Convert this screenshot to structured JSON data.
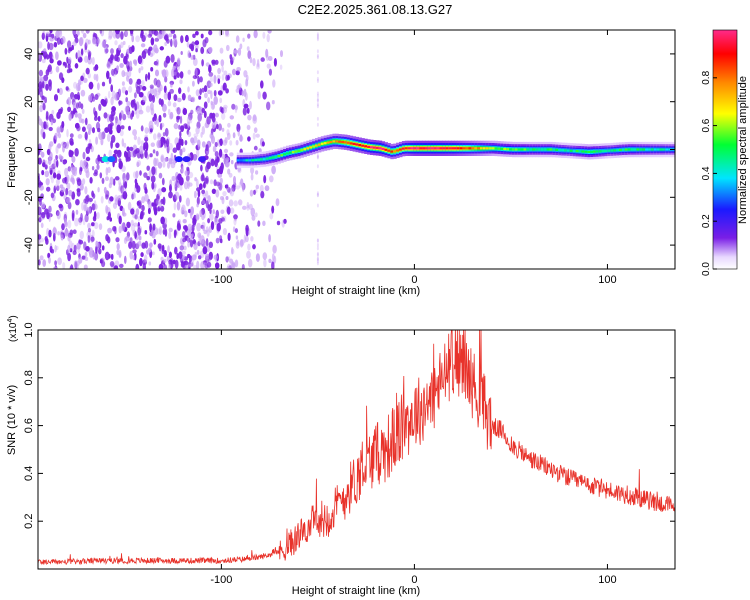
{
  "figure_title": "C2E2.2025.361.08.13.G27",
  "colors": {
    "line": "#e8322a",
    "axis": "#000000",
    "noise": "#7b22e0",
    "noise_light": "#c9a2f5"
  },
  "chart_data": [
    {
      "type": "heatmap",
      "title": "C2E2.2025.361.08.13.G27",
      "xlabel": "Height of straight line (km)",
      "ylabel": "Frequency (Hz)",
      "xlim": [
        -195,
        135
      ],
      "ylim": [
        -50,
        50
      ],
      "xticks": [
        -100,
        0,
        100
      ],
      "xtick_labels": [
        "-100",
        "0",
        "100"
      ],
      "yticks": [
        -40,
        -20,
        0,
        20,
        40
      ],
      "ytick_labels": [
        "-40",
        "-20",
        "0",
        "20",
        "40"
      ],
      "colorbar": {
        "label": "Normalized spectral amplitude",
        "range": [
          0,
          1
        ],
        "ticks": [
          0.0,
          0.2,
          0.4,
          0.6,
          0.8
        ],
        "tick_labels": [
          "0.0",
          "0.2",
          "0.4",
          "0.6",
          "0.8"
        ]
      },
      "ridge": [
        {
          "x": -92,
          "y": -4.5,
          "v": 0.35
        },
        {
          "x": -85,
          "y": -4.5,
          "v": 0.4
        },
        {
          "x": -78,
          "y": -4,
          "v": 0.45
        },
        {
          "x": -72,
          "y": -3,
          "v": 0.5
        },
        {
          "x": -66,
          "y": -1.5,
          "v": 0.55
        },
        {
          "x": -60,
          "y": -0.5,
          "v": 0.6
        },
        {
          "x": -54,
          "y": 1,
          "v": 0.65
        },
        {
          "x": -48,
          "y": 2.5,
          "v": 0.7
        },
        {
          "x": -42,
          "y": 3.5,
          "v": 0.75
        },
        {
          "x": -36,
          "y": 3,
          "v": 0.85
        },
        {
          "x": -30,
          "y": 2,
          "v": 0.9
        },
        {
          "x": -24,
          "y": 1,
          "v": 0.95
        },
        {
          "x": -18,
          "y": 0.5,
          "v": 1.0
        },
        {
          "x": -12,
          "y": -1,
          "v": 0.8
        },
        {
          "x": -6,
          "y": 0.5,
          "v": 0.9
        },
        {
          "x": 0,
          "y": 0.5,
          "v": 1.0
        },
        {
          "x": 10,
          "y": 0.5,
          "v": 1.0
        },
        {
          "x": 20,
          "y": 0.5,
          "v": 0.95
        },
        {
          "x": 30,
          "y": 0.5,
          "v": 0.8
        },
        {
          "x": 40,
          "y": 0.5,
          "v": 0.6
        },
        {
          "x": 50,
          "y": 0,
          "v": 0.55
        },
        {
          "x": 60,
          "y": 0,
          "v": 0.5
        },
        {
          "x": 70,
          "y": 0,
          "v": 0.5
        },
        {
          "x": 80,
          "y": -0.5,
          "v": 0.45
        },
        {
          "x": 90,
          "y": -1,
          "v": 0.55
        },
        {
          "x": 100,
          "y": -0.5,
          "v": 0.45
        },
        {
          "x": 110,
          "y": 0,
          "v": 0.5
        },
        {
          "x": 120,
          "y": 0,
          "v": 0.45
        },
        {
          "x": 135,
          "y": 0,
          "v": 0.4
        }
      ]
    },
    {
      "type": "line",
      "xlabel": "Height of straight line (km)",
      "ylabel": "SNR (10 * v/v)",
      "yscale_label": "(x10",
      "yscale_exponent": "4",
      "yscale_close": ")",
      "xlim": [
        -195,
        135
      ],
      "ylim": [
        0,
        1.0
      ],
      "xticks": [
        -100,
        0,
        100
      ],
      "xtick_labels": [
        "-100",
        "0",
        "100"
      ],
      "yticks": [
        0.2,
        0.4,
        0.6,
        0.8,
        1.0
      ],
      "ytick_labels": [
        "0.2",
        "0.4",
        "0.6",
        "0.8",
        "1.0"
      ],
      "series": [
        {
          "name": "SNR",
          "x": [
            -195,
            -180,
            -160,
            -140,
            -120,
            -100,
            -90,
            -80,
            -70,
            -65,
            -60,
            -55,
            -50,
            -45,
            -40,
            -35,
            -30,
            -25,
            -20,
            -15,
            -10,
            -5,
            0,
            5,
            10,
            15,
            20,
            25,
            30,
            35,
            40,
            45,
            50,
            60,
            70,
            80,
            90,
            100,
            110,
            120,
            130,
            135
          ],
          "y": [
            0.03,
            0.03,
            0.035,
            0.035,
            0.035,
            0.035,
            0.04,
            0.05,
            0.07,
            0.1,
            0.14,
            0.18,
            0.2,
            0.22,
            0.26,
            0.32,
            0.38,
            0.44,
            0.48,
            0.5,
            0.55,
            0.6,
            0.65,
            0.68,
            0.72,
            0.8,
            0.88,
            0.86,
            0.78,
            0.7,
            0.6,
            0.58,
            0.52,
            0.46,
            0.42,
            0.38,
            0.35,
            0.33,
            0.31,
            0.29,
            0.27,
            0.26
          ]
        }
      ]
    }
  ]
}
